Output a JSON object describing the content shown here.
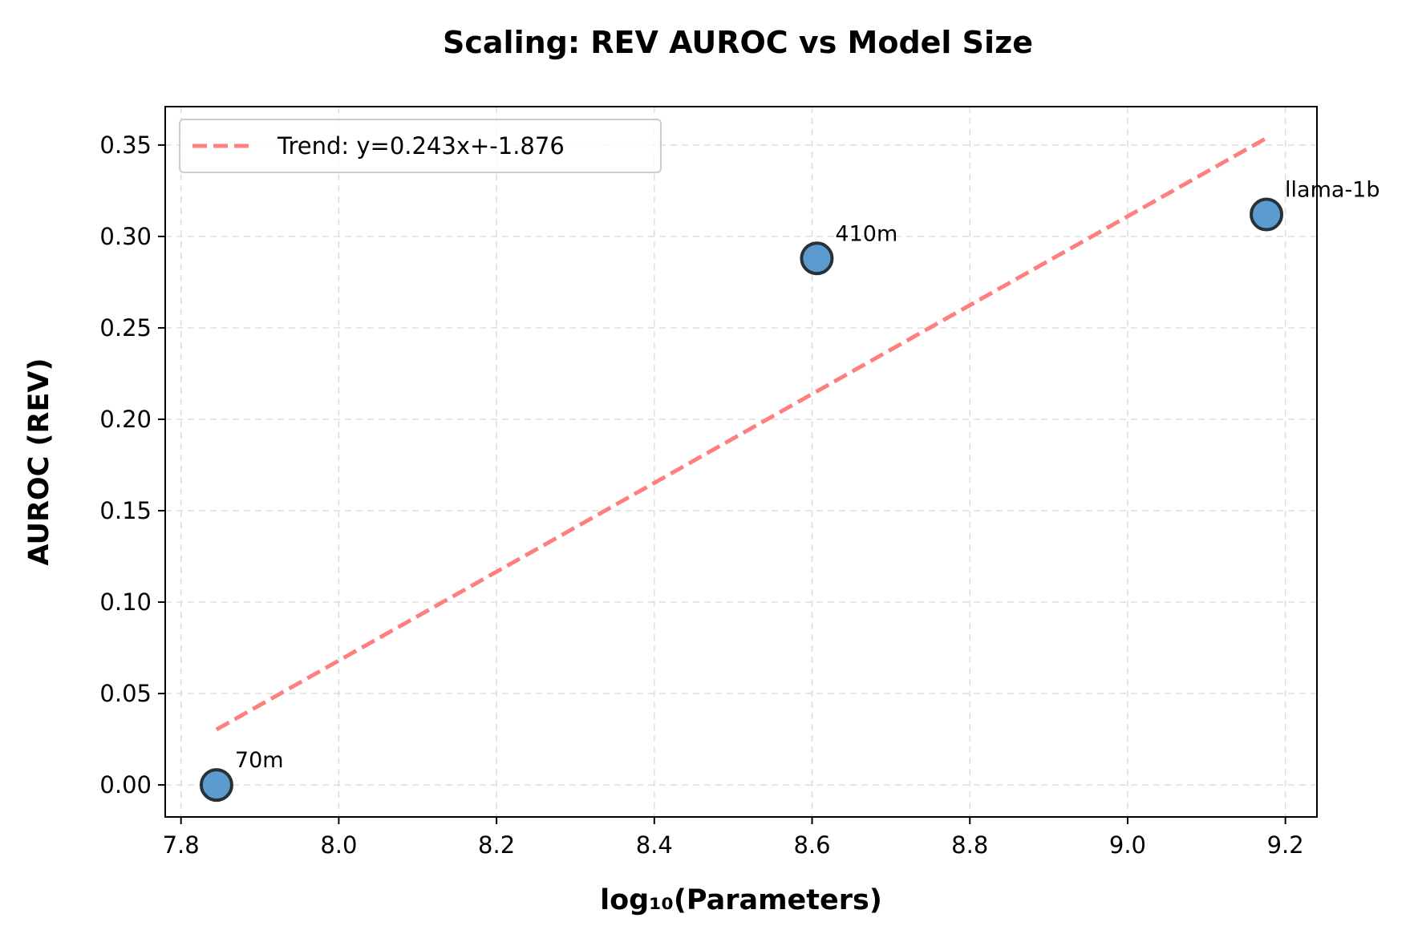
{
  "chart_data": {
    "type": "scatter",
    "title": "Scaling: REV AUROC vs Model Size",
    "xlabel": "log₁₀(Parameters)",
    "ylabel": "AUROC (REV)",
    "xlim": [
      7.78,
      9.24
    ],
    "ylim": [
      -0.0175,
      0.371
    ],
    "xticks": [
      7.8,
      8.0,
      8.2,
      8.4,
      8.6,
      8.8,
      9.0,
      9.2
    ],
    "xtick_labels": [
      "7.8",
      "8.0",
      "8.2",
      "8.4",
      "8.6",
      "8.8",
      "9.0",
      "9.2"
    ],
    "yticks": [
      0.0,
      0.05,
      0.1,
      0.15,
      0.2,
      0.25,
      0.3,
      0.35
    ],
    "ytick_labels": [
      "0.00",
      "0.05",
      "0.10",
      "0.15",
      "0.20",
      "0.25",
      "0.30",
      "0.35"
    ],
    "grid": true,
    "legend_position": "top-left",
    "points": [
      {
        "label": "70m",
        "x": 7.845,
        "y": 0.0
      },
      {
        "label": "410m",
        "x": 8.606,
        "y": 0.288
      },
      {
        "label": "llama-1b",
        "x": 9.176,
        "y": 0.312
      }
    ],
    "trend": {
      "name": "Trend: y=0.243x+-1.876",
      "slope": 0.243,
      "intercept": -1.876,
      "x_range": [
        7.845,
        9.176
      ]
    },
    "colors": {
      "point_fill": "#5b9bcf",
      "point_edge": "#263238",
      "trend": "#ff7f7f",
      "grid": "#dddddd"
    }
  }
}
